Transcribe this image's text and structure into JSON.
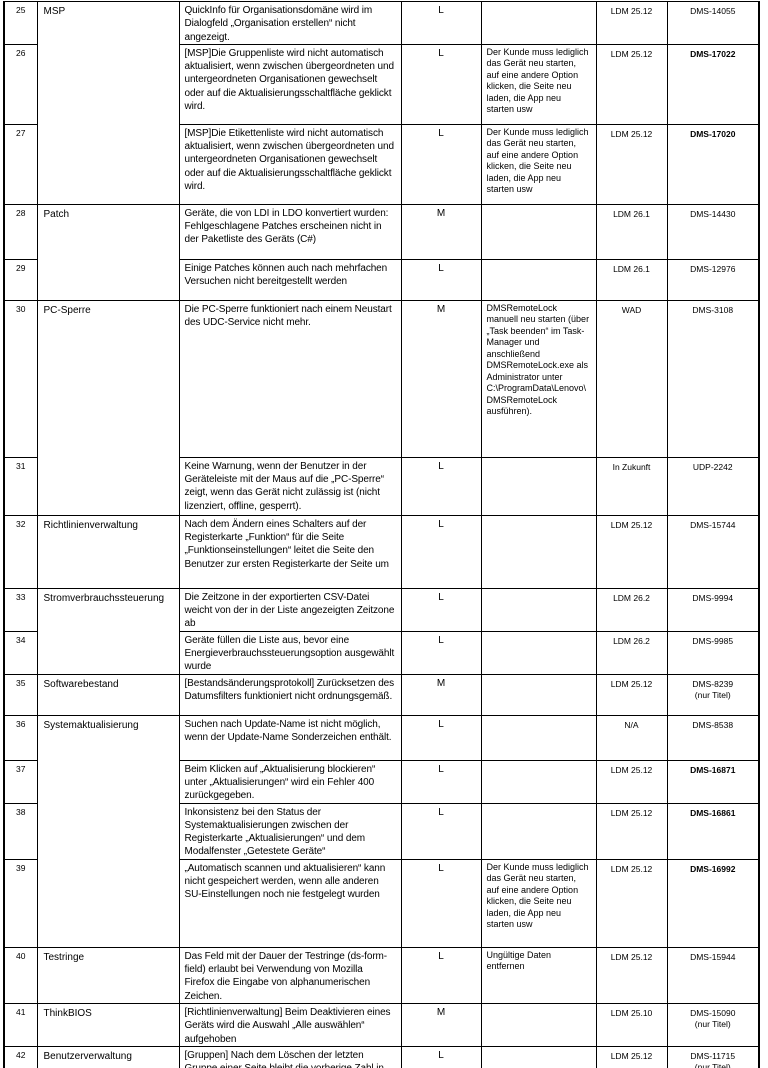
{
  "table": {
    "rows": [
      {
        "nr": "25",
        "category": "MSP",
        "category_rowspan": 3,
        "description": "QuickInfo für Organisationsdomäne wird im Dialogfeld „Organisation erstellen“ nicht angezeigt.",
        "severity": "L",
        "workaround": "",
        "version": "LDM 25.12",
        "id": "DMS-14055",
        "id_bold": false,
        "id_note": ""
      },
      {
        "nr": "26",
        "description": "[MSP]Die Gruppenliste wird nicht automatisch aktualisiert, wenn zwischen übergeordneten und untergeordneten Organisationen gewechselt oder auf die Aktualisierungsschaltfläche geklickt wird.",
        "severity": "L",
        "workaround": "Der Kunde muss lediglich das Gerät neu starten, auf eine andere Option klicken, die Seite neu laden, die App neu starten usw",
        "version": "LDM 25.12",
        "id": "DMS-17022",
        "id_bold": true,
        "id_note": ""
      },
      {
        "nr": "27",
        "description": "[MSP]Die Etikettenliste wird nicht automatisch aktualisiert, wenn zwischen übergeordneten und untergeordneten Organisationen gewechselt oder auf die Aktualisierungsschaltfläche geklickt wird.",
        "severity": "L",
        "workaround": "Der Kunde muss lediglich das Gerät neu starten, auf eine andere Option klicken, die Seite neu laden, die App neu starten usw",
        "version": "LDM 25.12",
        "id": "DMS-17020",
        "id_bold": true,
        "id_note": ""
      },
      {
        "nr": "28",
        "category": "Patch",
        "category_rowspan": 2,
        "description": "Geräte, die von LDI in LDO konvertiert wurden: Fehlgeschlagene Patches erscheinen nicht in der Paketliste des Geräts (C#)",
        "severity": "M",
        "workaround": "",
        "version": "LDM 26.1",
        "id": "DMS-14430",
        "id_bold": false,
        "id_note": ""
      },
      {
        "nr": "29",
        "description": "Einige Patches können auch nach mehrfachen Versuchen nicht bereitgestellt werden",
        "severity": "L",
        "workaround": "",
        "version": "LDM 26.1",
        "id": "DMS-12976",
        "id_bold": false,
        "id_note": ""
      },
      {
        "nr": "30",
        "category": "PC-Sperre",
        "category_rowspan": 2,
        "description": "Die PC-Sperre funktioniert nach einem Neustart des UDC-Service nicht mehr.",
        "severity": "M",
        "workaround": "DMSRemoteLock manuell neu starten (über „Task beenden“ im Task-Manager und anschließend DMSRemoteLock.exe als Administrator unter C:\\ProgramData\\Lenovo\\DMSRemoteLock ausführen).",
        "version": "WAD",
        "id": "DMS-3108",
        "id_bold": false,
        "id_note": ""
      },
      {
        "nr": "31",
        "description": "Keine Warnung, wenn der Benutzer in der Geräteleiste mit der Maus auf die „PC-Sperre“ zeigt, wenn das Gerät nicht zulässig ist (nicht lizenziert, offline, gesperrt).",
        "severity": "L",
        "workaround": "",
        "version": "In Zukunft",
        "id": "UDP-2242",
        "id_bold": false,
        "id_note": ""
      },
      {
        "nr": "32",
        "category": "Richtlinienverwaltung",
        "category_rowspan": 1,
        "description": "Nach dem Ändern eines Schalters auf der Registerkarte „Funktion“ für die Seite „Funktionseinstellungen“ leitet die Seite den Benutzer zur ersten Registerkarte der Seite um",
        "severity": "L",
        "workaround": "",
        "version": "LDM 25.12",
        "id": "DMS-15744",
        "id_bold": false,
        "id_note": ""
      },
      {
        "nr": "33",
        "category": "Stromverbrauchssteuerung",
        "category_rowspan": 2,
        "description": "Die Zeitzone in der exportierten CSV-Datei weicht von der in der Liste angezeigten Zeitzone ab",
        "severity": "L",
        "workaround": "",
        "version": "LDM 26.2",
        "id": "DMS-9994",
        "id_bold": false,
        "id_note": ""
      },
      {
        "nr": "34",
        "description": "Geräte füllen die Liste aus, bevor eine Energieverbrauchssteuerungsoption ausgewählt wurde",
        "severity": "L",
        "workaround": "",
        "version": "LDM 26.2",
        "id": "DMS-9985",
        "id_bold": false,
        "id_note": ""
      },
      {
        "nr": "35",
        "category": "Softwarebestand",
        "category_rowspan": 1,
        "description": "[Bestandsänderungsprotokoll] Zurücksetzen des Datumsfilters funktioniert nicht ordnungsgemäß.",
        "severity": "M",
        "workaround": "",
        "version": "LDM 25.12",
        "id": "DMS-8239",
        "id_bold": false,
        "id_note": "(nur Titel)"
      },
      {
        "nr": "36",
        "category": "Systemaktualisierung",
        "category_rowspan": 4,
        "description": "Suchen nach Update-Name ist nicht möglich, wenn der Update-Name Sonderzeichen enthält.",
        "severity": "L",
        "workaround": "",
        "version": "N/A",
        "id": "DMS-8538",
        "id_bold": false,
        "id_note": ""
      },
      {
        "nr": "37",
        "description": "Beim Klicken auf „Aktualisierung blockieren“ unter „Aktualisierungen“ wird ein Fehler 400 zurückgegeben.",
        "severity": "L",
        "workaround": "",
        "version": "LDM 25.12",
        "id": "DMS-16871",
        "id_bold": true,
        "id_note": ""
      },
      {
        "nr": "38",
        "description": "Inkonsistenz bei den Status der Systemaktualisierungen zwischen der Registerkarte „Aktualisierungen“ und dem Modalfenster „Getestete Geräte“",
        "severity": "L",
        "workaround": "",
        "version": "LDM 25.12",
        "id": "DMS-16861",
        "id_bold": true,
        "id_note": ""
      },
      {
        "nr": "39",
        "description": "„Automatisch scannen und aktualisieren“ kann nicht gespeichert werden, wenn alle anderen SU-Einstellungen noch nie festgelegt wurden",
        "severity": "L",
        "workaround": "Der Kunde muss lediglich das Gerät neu starten, auf eine andere Option klicken, die Seite neu laden, die App neu starten usw",
        "version": "LDM 25.12",
        "id": "DMS-16992",
        "id_bold": true,
        "id_note": ""
      },
      {
        "nr": "40",
        "category": "Testringe",
        "category_rowspan": 1,
        "description": "Das Feld mit der Dauer der Testringe (ds-form-field) erlaubt bei Verwendung von Mozilla Firefox die Eingabe von alphanumerischen Zeichen.",
        "severity": "L",
        "workaround": "Ungültige Daten entfernen",
        "version": "LDM 25.12",
        "id": "DMS-15944",
        "id_bold": false,
        "id_note": ""
      },
      {
        "nr": "41",
        "category": "ThinkBIOS",
        "category_rowspan": 1,
        "description": "[Richtlinienverwaltung] Beim Deaktivieren eines Geräts wird die Auswahl „Alle auswählen“ aufgehoben",
        "severity": "M",
        "workaround": "",
        "version": "LDM 25.10",
        "id": "DMS-15090",
        "id_bold": false,
        "id_note": "(nur Titel)"
      },
      {
        "nr": "42",
        "category": "Benutzerverwaltung",
        "category_rowspan": 1,
        "description": "[Gruppen] Nach dem Löschen der letzten Gruppe einer Seite bleibt die vorherige Zahl in der Paginierung bestehen.",
        "severity": "L",
        "workaround": "",
        "version": "LDM 25.12",
        "id": "DMS-11715",
        "id_bold": false,
        "id_note": "(nur Titel)"
      }
    ]
  }
}
